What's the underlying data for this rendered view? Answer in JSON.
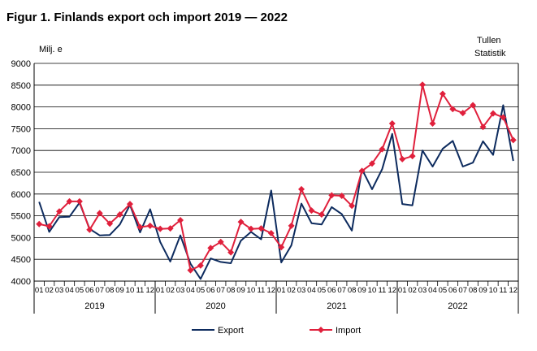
{
  "chart_data": {
    "type": "line",
    "title": "Figur 1. Finlands export och import 2019 — 2022",
    "ylabel": "Milj. e",
    "source": [
      "Tullen",
      "Statistik"
    ],
    "ylim": [
      4000,
      9000
    ],
    "yticks": [
      4000,
      4500,
      5000,
      5500,
      6000,
      6500,
      7000,
      7500,
      8000,
      8500,
      9000
    ],
    "grid": true,
    "legend_position": "bottom",
    "month_labels": [
      "01",
      "02",
      "03",
      "04",
      "05",
      "06",
      "07",
      "08",
      "09",
      "10",
      "11",
      "12"
    ],
    "years": [
      "2019",
      "2020",
      "2021",
      "2022"
    ],
    "series": [
      {
        "name": "Export",
        "color": "#0d2b5e",
        "marker": "none",
        "values": [
          5820,
          5130,
          5470,
          5480,
          5800,
          5200,
          5050,
          5060,
          5300,
          5750,
          5120,
          5650,
          4900,
          4450,
          5050,
          4400,
          4050,
          4520,
          4440,
          4410,
          4930,
          5130,
          4960,
          6080,
          4430,
          4820,
          5780,
          5330,
          5300,
          5700,
          5540,
          5160,
          6570,
          6110,
          6570,
          7380,
          5770,
          5740,
          7000,
          6630,
          7040,
          7220,
          6630,
          6720,
          7210,
          6900,
          8040,
          6760
        ]
      },
      {
        "name": "Import",
        "color": "#e0203c",
        "marker": "diamond",
        "values": [
          5310,
          5260,
          5600,
          5830,
          5830,
          5180,
          5560,
          5320,
          5530,
          5770,
          5240,
          5270,
          5200,
          5210,
          5400,
          4250,
          4360,
          4760,
          4900,
          4660,
          5360,
          5200,
          5210,
          5100,
          4780,
          5270,
          6110,
          5620,
          5530,
          5970,
          5960,
          5730,
          6530,
          6700,
          7030,
          7620,
          6800,
          6870,
          8510,
          7620,
          8300,
          7950,
          7860,
          8040,
          7540,
          7850,
          7760,
          7240
        ]
      }
    ]
  }
}
